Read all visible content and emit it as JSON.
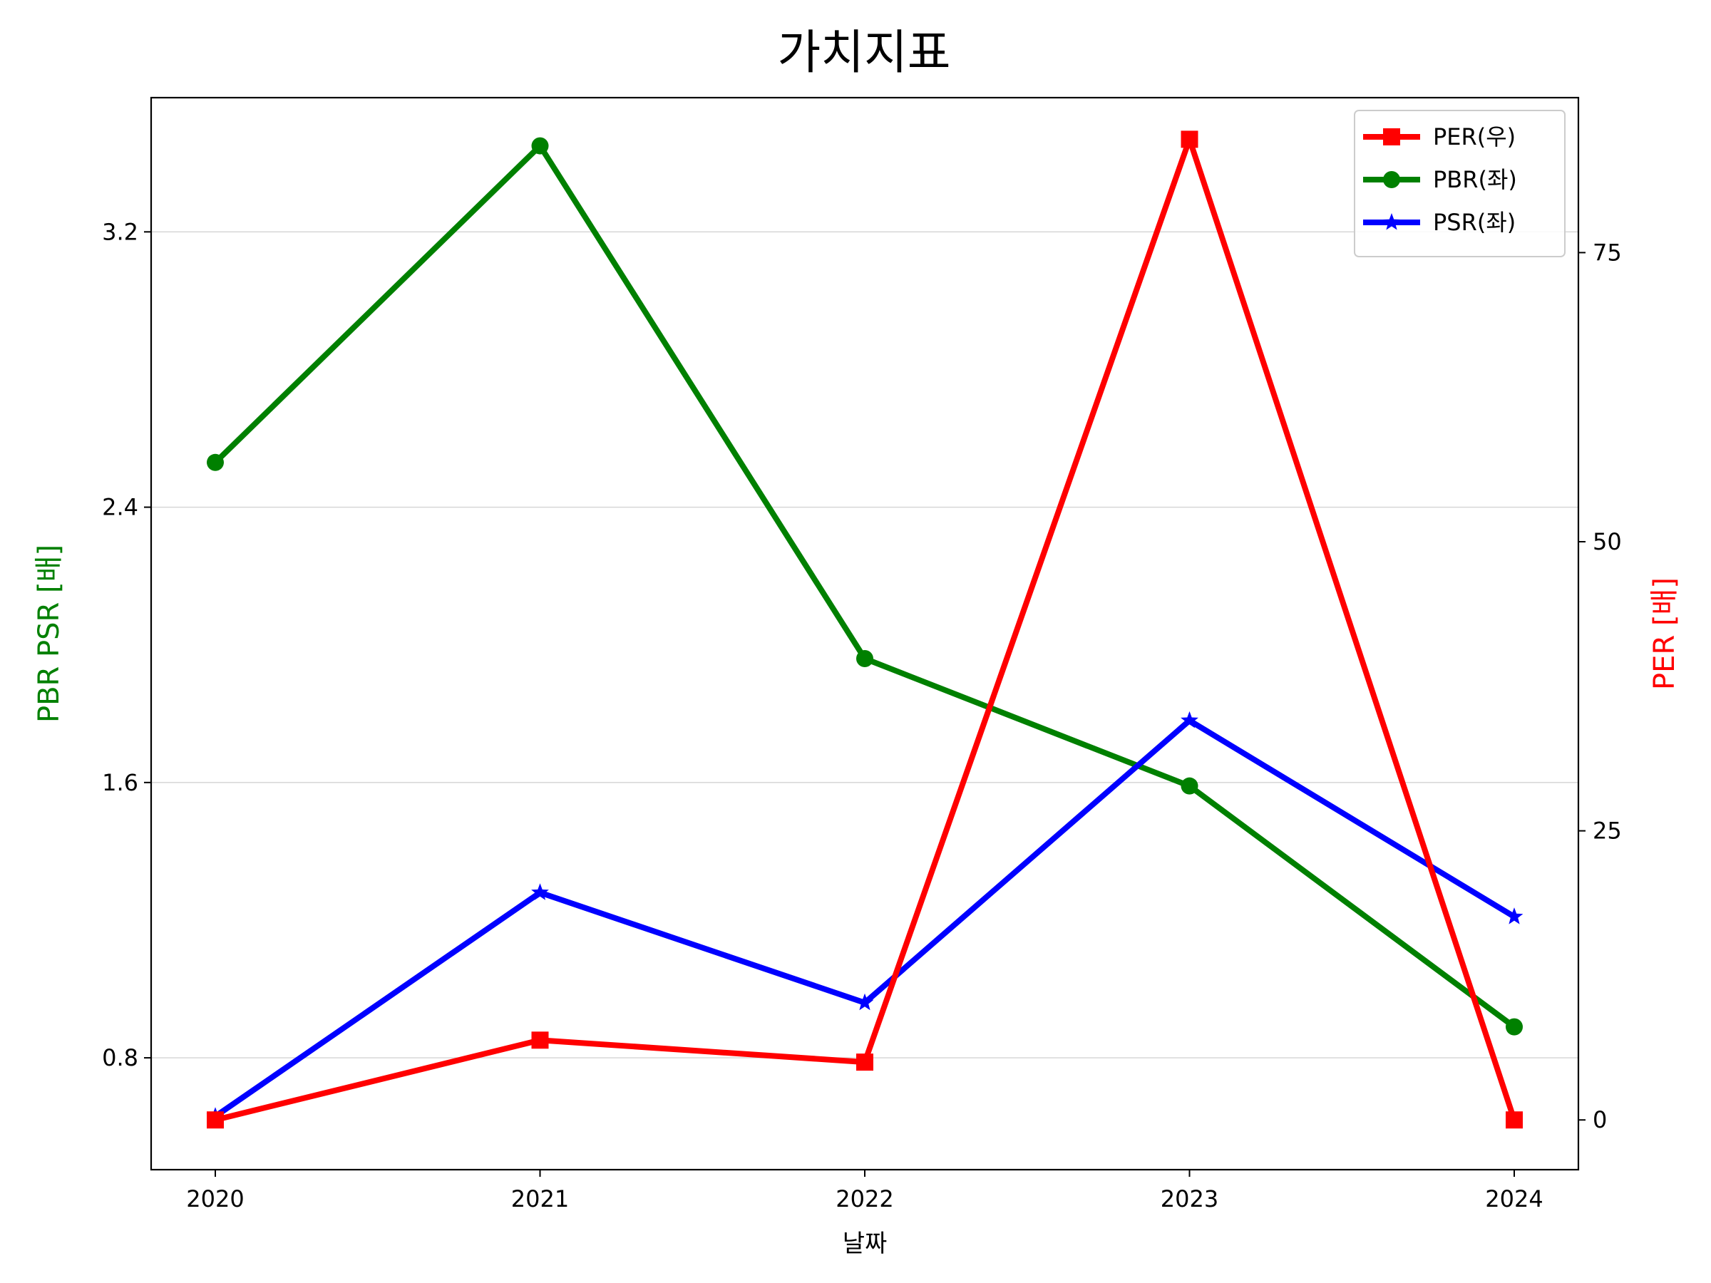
{
  "chart_data": {
    "type": "line",
    "title": "가치지표",
    "xlabel": "날짜",
    "ylabel_left": "PBR PSR [배]",
    "ylabel_right": "PER [배]",
    "categories": [
      "2020",
      "2021",
      "2022",
      "2023",
      "2024"
    ],
    "ylim_left": [
      0.475,
      3.59
    ],
    "yticks_left": [
      "0.8",
      "1.6",
      "2.4",
      "3.2"
    ],
    "ylim_right": [
      -4.3,
      88.4
    ],
    "yticks_right": [
      "0",
      "25",
      "50",
      "75"
    ],
    "grid": "horizontal (left axis)",
    "legend_position": "top-right",
    "series": [
      {
        "name": "PER(우)",
        "axis": "right",
        "color": "#ff0000",
        "marker": "square",
        "values": [
          0.0,
          6.9,
          5.0,
          84.8,
          0.0
        ]
      },
      {
        "name": "PBR(좌)",
        "axis": "left",
        "color": "#008000",
        "marker": "circle",
        "values": [
          2.53,
          3.45,
          1.96,
          1.59,
          0.89
        ]
      },
      {
        "name": "PSR(좌)",
        "axis": "left",
        "color": "#0000ff",
        "marker": "star",
        "values": [
          0.63,
          1.28,
          0.96,
          1.78,
          1.21
        ]
      }
    ]
  }
}
